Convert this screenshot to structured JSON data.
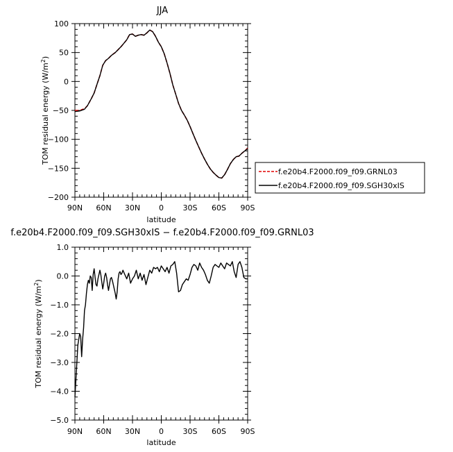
{
  "chart_data": [
    {
      "type": "line",
      "title": "JJA",
      "xlabel": "latitude",
      "ylabel": "TOM residual energy (W/m²)",
      "xlim": [
        90,
        -90
      ],
      "ylim": [
        -200,
        100
      ],
      "x_ticks": [
        90,
        60,
        30,
        0,
        -30,
        -60,
        -90
      ],
      "x_tick_labels": [
        "90N",
        "60N",
        "30N",
        "0",
        "30S",
        "60S",
        "90S"
      ],
      "y_ticks": [
        100,
        50,
        0,
        -50,
        -100,
        -150,
        -200
      ],
      "y_tick_labels": [
        "100",
        "50",
        "0",
        "−50",
        "−100",
        "−150",
        "−200"
      ],
      "legend": "right",
      "series": [
        {
          "name": "f.e20b4.F2000.f09_f09.GRNL03",
          "color": "#e00000",
          "dash": true,
          "x": [
            90,
            85,
            80,
            77,
            73,
            70,
            67,
            64,
            61,
            58,
            55,
            52,
            48,
            45,
            42,
            39,
            36,
            33,
            30,
            27,
            24,
            21,
            18,
            15,
            12,
            9,
            6,
            3,
            0,
            -3,
            -6,
            -9,
            -12,
            -15,
            -18,
            -21,
            -24,
            -27,
            -30,
            -33,
            -36,
            -39,
            -42,
            -45,
            -48,
            -51,
            -54,
            -57,
            -60,
            -63,
            -66,
            -69,
            -72,
            -75,
            -78,
            -81,
            -84,
            -87,
            -90
          ],
          "y": [
            -50,
            -50,
            -47,
            -42,
            -30,
            -20,
            -5,
            10,
            28,
            36,
            40,
            45,
            50,
            55,
            60,
            66,
            72,
            81,
            82,
            78,
            80,
            81,
            80,
            84,
            89,
            86,
            78,
            68,
            60,
            48,
            32,
            14,
            -6,
            -22,
            -38,
            -50,
            -58,
            -67,
            -78,
            -90,
            -102,
            -113,
            -124,
            -134,
            -143,
            -151,
            -157,
            -162,
            -166,
            -167,
            -161,
            -152,
            -142,
            -135,
            -130,
            -129,
            -124,
            -120,
            -115
          ]
        },
        {
          "name": "f.e20b4.F2000.f09_f09.SGH30xIS",
          "color": "#000000",
          "dash": false,
          "x": [
            90,
            85,
            80,
            77,
            73,
            70,
            67,
            64,
            61,
            58,
            55,
            52,
            48,
            45,
            42,
            39,
            36,
            33,
            30,
            27,
            24,
            21,
            18,
            15,
            12,
            9,
            6,
            3,
            0,
            -3,
            -6,
            -9,
            -12,
            -15,
            -18,
            -21,
            -24,
            -27,
            -30,
            -33,
            -36,
            -39,
            -42,
            -45,
            -48,
            -51,
            -54,
            -57,
            -60,
            -63,
            -66,
            -69,
            -72,
            -75,
            -78,
            -81,
            -84,
            -87,
            -90
          ],
          "y": [
            -52,
            -51,
            -48,
            -42,
            -30,
            -20,
            -5,
            10,
            28,
            36,
            40,
            45,
            50,
            55,
            60,
            66,
            72,
            81,
            82,
            78,
            80,
            81,
            80,
            84,
            89,
            86,
            78,
            68,
            60,
            48,
            32,
            14,
            -6,
            -22,
            -38,
            -50,
            -58,
            -67,
            -78,
            -90,
            -102,
            -113,
            -124,
            -134,
            -143,
            -151,
            -157,
            -162,
            -166,
            -167,
            -161,
            -152,
            -142,
            -135,
            -130,
            -129,
            -124,
            -120,
            -116
          ]
        }
      ]
    },
    {
      "type": "line",
      "title": "f.e20b4.F2000.f09_f09.SGH30xIS − f.e20b4.F2000.f09_f09.GRNL03",
      "xlabel": "latitude",
      "ylabel": "TOM residual energy (W/m²)",
      "xlim": [
        90,
        -90
      ],
      "ylim": [
        -5,
        1
      ],
      "x_ticks": [
        90,
        60,
        30,
        0,
        -30,
        -60,
        -90
      ],
      "x_tick_labels": [
        "90N",
        "60N",
        "30N",
        "0",
        "30S",
        "60S",
        "90S"
      ],
      "y_ticks": [
        1,
        0,
        -1,
        -2,
        -3,
        -4,
        -5
      ],
      "y_tick_labels": [
        "1.0",
        "0.0",
        "−1.0",
        "−2.0",
        "−3.0",
        "−4.0",
        "−5.0"
      ],
      "series": [
        {
          "color": "#000000",
          "x": [
            90,
            89,
            88,
            87,
            86,
            85,
            84,
            83,
            82,
            81,
            80,
            79,
            78,
            77,
            76,
            75,
            74,
            73,
            72,
            71,
            70,
            69,
            68,
            67,
            66,
            65,
            64,
            63,
            62,
            61,
            60,
            59,
            58,
            57,
            56,
            55,
            54,
            53,
            52,
            51,
            50,
            49,
            48,
            47,
            46,
            45,
            44,
            43,
            42,
            41,
            40,
            38,
            36,
            34,
            32,
            30,
            28,
            26,
            24,
            22,
            20,
            18,
            16,
            14,
            12,
            10,
            8,
            6,
            4,
            2,
            0,
            -2,
            -4,
            -6,
            -8,
            -10,
            -12,
            -14,
            -16,
            -18,
            -20,
            -22,
            -24,
            -26,
            -28,
            -30,
            -32,
            -34,
            -36,
            -38,
            -40,
            -42,
            -44,
            -46,
            -48,
            -50,
            -52,
            -54,
            -56,
            -58,
            -60,
            -62,
            -64,
            -66,
            -68,
            -70,
            -72,
            -74,
            -76,
            -78,
            -80,
            -82,
            -84,
            -86,
            -88,
            -90
          ],
          "y": [
            -4.2,
            -3.6,
            -3.0,
            -2.4,
            -2.2,
            -2.0,
            -2.1,
            -2.8,
            -2.2,
            -1.8,
            -1.2,
            -1.0,
            -0.6,
            -0.3,
            -0.15,
            -0.25,
            0.0,
            -0.05,
            -0.5,
            0.05,
            0.25,
            -0.05,
            -0.3,
            -0.35,
            -0.1,
            0.05,
            0.2,
            0.05,
            -0.2,
            -0.45,
            -0.25,
            0.0,
            0.1,
            -0.05,
            -0.3,
            -0.5,
            -0.3,
            -0.1,
            -0.05,
            -0.15,
            -0.3,
            -0.45,
            -0.6,
            -0.8,
            -0.55,
            -0.1,
            0.1,
            0.15,
            0.05,
            0.1,
            0.2,
            0.05,
            -0.1,
            0.1,
            -0.25,
            -0.1,
            0.0,
            0.2,
            -0.1,
            0.1,
            -0.15,
            0.05,
            -0.3,
            -0.05,
            0.2,
            0.1,
            0.3,
            0.25,
            0.3,
            0.15,
            0.35,
            0.25,
            0.15,
            0.3,
            0.1,
            0.35,
            0.4,
            0.5,
            0.1,
            -0.55,
            -0.5,
            -0.3,
            -0.2,
            -0.1,
            -0.15,
            0.05,
            0.3,
            0.4,
            0.35,
            0.2,
            0.45,
            0.3,
            0.2,
            0.05,
            -0.15,
            -0.25,
            0.0,
            0.3,
            0.4,
            0.35,
            0.3,
            0.45,
            0.35,
            0.25,
            0.45,
            0.4,
            0.35,
            0.5,
            0.15,
            -0.05,
            0.4,
            0.5,
            0.3,
            -0.05,
            -0.1,
            -0.1
          ]
        }
      ]
    }
  ]
}
